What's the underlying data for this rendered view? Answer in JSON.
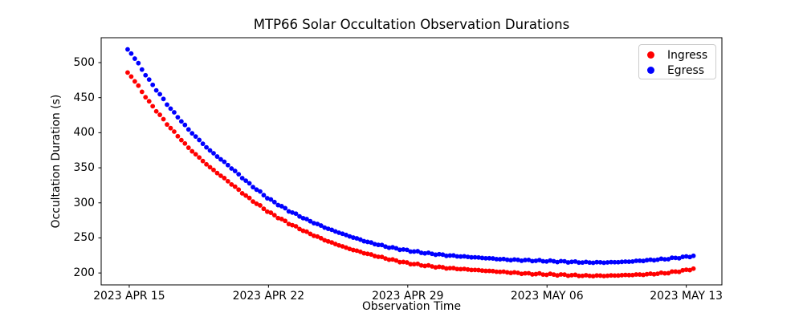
{
  "chart_data": {
    "type": "scatter",
    "title": "MTP66 Solar Occultation Observation Durations",
    "xlabel": "Observation Time",
    "ylabel": "Occultation Duration (s)",
    "x_tick_labels": [
      "2023 APR 15",
      "2023 APR 22",
      "2023 APR 29",
      "2023 MAY 06",
      "2023 MAY 13"
    ],
    "x_tick_days": [
      0,
      7,
      14,
      21,
      28
    ],
    "y_tick_labels": [
      "200",
      "250",
      "300",
      "350",
      "400",
      "450",
      "500"
    ],
    "y_ticks": [
      200,
      250,
      300,
      350,
      400,
      450,
      500
    ],
    "xlim_days": [
      -1.41,
      29.79
    ],
    "ylim": [
      183,
      535.5
    ],
    "grid": false,
    "legend_position": "upper right",
    "legend": [
      {
        "label": "Ingress",
        "color": "#ff0000"
      },
      {
        "label": "Egress",
        "color": "#0000ff"
      }
    ],
    "marker_diameter_px": 6,
    "series": [
      {
        "name": "Ingress",
        "color": "#ff0000",
        "t_days": [
          0,
          1,
          2,
          3,
          4,
          5,
          6,
          7,
          8,
          9,
          10,
          11,
          12,
          13,
          14,
          15,
          16,
          17,
          18,
          19,
          20,
          21,
          22,
          23,
          24,
          25,
          26,
          27,
          28,
          28.5
        ],
        "values": [
          485,
          444,
          409,
          378,
          352,
          330,
          307,
          287,
          271,
          257,
          245,
          235,
          227,
          220,
          214,
          210,
          207,
          205,
          203,
          201,
          199,
          198,
          197,
          196,
          196,
          197,
          198,
          200,
          204,
          207
        ]
      },
      {
        "name": "Egress",
        "color": "#0000ff",
        "t_days": [
          0,
          1,
          2,
          3,
          4,
          5,
          6,
          7,
          8,
          9,
          10,
          11,
          12,
          13,
          14,
          15,
          16,
          17,
          18,
          19,
          20,
          21,
          22,
          23,
          24,
          25,
          26,
          27,
          28,
          28.5
        ],
        "values": [
          518,
          475,
          437,
          404,
          376,
          353,
          328,
          306,
          289,
          275,
          263,
          253,
          244,
          237,
          232,
          228,
          225,
          223,
          221,
          219,
          218,
          217,
          216,
          215,
          215,
          216,
          218,
          220,
          223,
          225
        ]
      }
    ]
  }
}
